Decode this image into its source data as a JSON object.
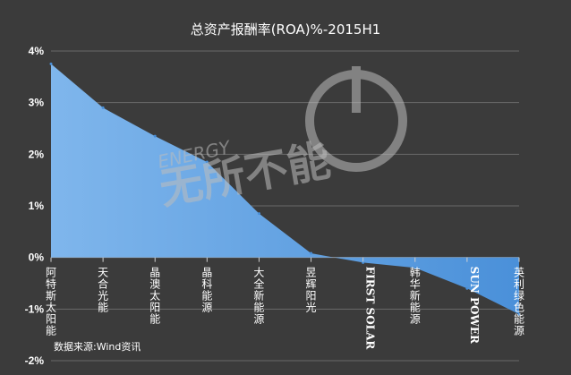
{
  "chart_data": {
    "type": "area",
    "title": "总资产报酬率(ROA)%-2015H1",
    "categories": [
      "阿特斯太阳能",
      "天合光能",
      "晶澳太阳能",
      "晶科能源",
      "大全新能源",
      "昱辉阳光",
      "FIRST SOLAR",
      "韩华新能源",
      "SUN POWER",
      "英利绿色能源"
    ],
    "bold_categories": [
      "FIRST SOLAR",
      "SUN POWER"
    ],
    "series": [
      {
        "values": [
          3.75,
          2.9,
          2.35,
          1.85,
          0.85,
          0.08,
          -0.1,
          -0.2,
          -0.6,
          -1.1
        ]
      }
    ],
    "yticks": [
      "4%",
      "3%",
      "2%",
      "1%",
      "0%",
      "-1%",
      "-2%"
    ],
    "ylim": [
      -2,
      4
    ],
    "grid": true,
    "fill_color": "#4a90d9",
    "fill_color_light": "#7fb6ec",
    "grid_color": "#6a6a6a"
  },
  "source_note": "数据来源:Wind资讯",
  "watermark": {
    "top_text": "ENERGY",
    "main_text": "无所不能",
    "icon": "power-symbol-icon"
  }
}
